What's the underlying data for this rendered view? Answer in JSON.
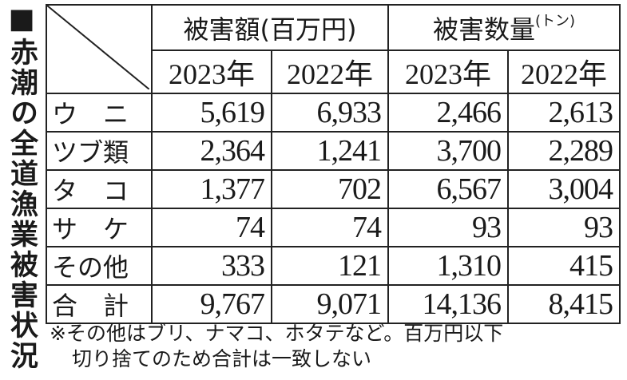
{
  "title": "■赤潮の全道漁業被害状況",
  "headers": {
    "damage_amount": "被害額(百万円)",
    "damage_quantity": "被害数量",
    "quantity_unit": "(トン)",
    "years": [
      "2023年",
      "2022年",
      "2023年",
      "2022年"
    ]
  },
  "rows": [
    {
      "label": "ウ　ニ",
      "values": [
        "5,619",
        "6,933",
        "2,466",
        "2,613"
      ]
    },
    {
      "label": "ツブ類",
      "values": [
        "2,364",
        "1,241",
        "3,700",
        "2,289"
      ]
    },
    {
      "label": "タ　コ",
      "values": [
        "1,377",
        "702",
        "6,567",
        "3,004"
      ]
    },
    {
      "label": "サ　ケ",
      "values": [
        "74",
        "74",
        "93",
        "93"
      ]
    },
    {
      "label": "その他",
      "values": [
        "333",
        "121",
        "1,310",
        "415"
      ]
    },
    {
      "label": "合　計",
      "values": [
        "9,767",
        "9,071",
        "14,136",
        "8,415"
      ]
    }
  ],
  "note": {
    "line1": "※その他はブリ、ナマコ、ホタテなど。百万円以下",
    "line2": "切り捨てのため合計は一致しない"
  }
}
